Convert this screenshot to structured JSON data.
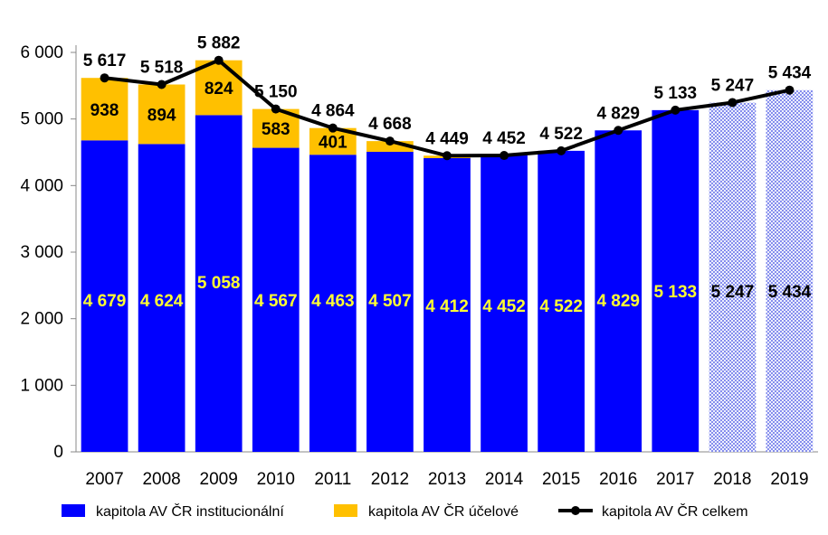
{
  "chart_data": {
    "type": "bar",
    "stacked": true,
    "categories": [
      "2007",
      "2008",
      "2009",
      "2010",
      "2011",
      "2012",
      "2013",
      "2014",
      "2015",
      "2016",
      "2017",
      "2018",
      "2019"
    ],
    "ylim": [
      0,
      6000
    ],
    "yticks": [
      0,
      1000,
      2000,
      3000,
      4000,
      5000,
      6000
    ],
    "ytick_labels": [
      "0",
      "1 000",
      "2 000",
      "3 000",
      "4 000",
      "5 000",
      "6 000"
    ],
    "grid": false,
    "legend_position": "bottom",
    "series": [
      {
        "name": "kapitola AV ČR institucionální",
        "type": "bar",
        "color": "#0000ff",
        "values": [
          4679,
          4624,
          5058,
          4567,
          4463,
          4507,
          4412,
          4452,
          4522,
          4829,
          5133,
          5247,
          5434
        ],
        "labels": [
          "4 679",
          "4 624",
          "5 058",
          "4 567",
          "4 463",
          "4 507",
          "4 412",
          "4 452",
          "4 522",
          "4 829",
          "5 133",
          "5 247",
          "5 434"
        ],
        "projected_from_index": 11
      },
      {
        "name": "kapitola AV ČR účelové",
        "type": "bar",
        "color": "#ffc000",
        "values": [
          938,
          894,
          824,
          583,
          401,
          161,
          37,
          0,
          0,
          0,
          0,
          0,
          0
        ],
        "labels": [
          "938",
          "894",
          "824",
          "583",
          "401",
          "",
          "",
          "",
          "",
          "",
          "",
          "",
          ""
        ]
      },
      {
        "name": "kapitola AV ČR celkem",
        "type": "line",
        "color": "#000000",
        "values": [
          5617,
          5518,
          5882,
          5150,
          4864,
          4668,
          4449,
          4452,
          4522,
          4829,
          5133,
          5247,
          5434
        ],
        "labels": [
          "5 617",
          "5 518",
          "5 882",
          "5 150",
          "4 864",
          "4 668",
          "4 449",
          "4 452",
          "4 522",
          "4 829",
          "5 133",
          "5 247",
          "5 434"
        ]
      }
    ]
  }
}
